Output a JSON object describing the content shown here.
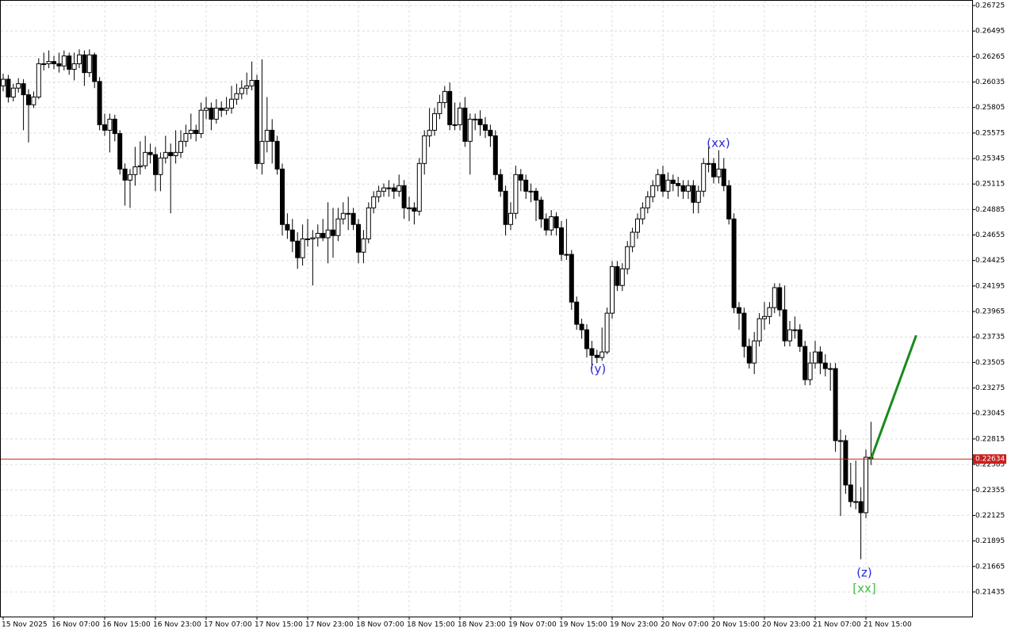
{
  "chart_data": {
    "type": "candlestick",
    "color_up": "#ffffff",
    "color_down": "#000000",
    "grid": true,
    "ylim": [
      0.21213,
      0.26775
    ],
    "yticks": [
      0.26725,
      0.26495,
      0.26265,
      0.26035,
      0.25805,
      0.25575,
      0.25345,
      0.25115,
      0.24885,
      0.24655,
      0.24425,
      0.24195,
      0.23965,
      0.23735,
      0.23505,
      0.23275,
      0.23045,
      0.22815,
      0.22585,
      0.22355,
      0.22125,
      0.21895,
      0.21665,
      0.21435
    ],
    "categories": [
      "15 Nov 2025",
      null,
      null,
      null,
      null,
      null,
      null,
      null,
      null,
      null,
      "16 Nov 07:00",
      null,
      null,
      null,
      null,
      null,
      null,
      null,
      null,
      null,
      "16 Nov 15:00",
      null,
      null,
      null,
      null,
      null,
      null,
      null,
      null,
      null,
      "16 Nov 23:00",
      null,
      null,
      null,
      null,
      null,
      null,
      null,
      null,
      null,
      "17 Nov 07:00",
      null,
      null,
      null,
      null,
      null,
      null,
      null,
      null,
      null,
      "17 Nov 15:00",
      null,
      null,
      null,
      null,
      null,
      null,
      null,
      null,
      null,
      "17 Nov 23:00",
      null,
      null,
      null,
      null,
      null,
      null,
      null,
      null,
      null,
      "18 Nov 07:00",
      null,
      null,
      null,
      null,
      null,
      null,
      null,
      null,
      null,
      "18 Nov 15:00",
      null,
      null,
      null,
      null,
      null,
      null,
      null,
      null,
      null,
      "18 Nov 23:00",
      null,
      null,
      null,
      null,
      null,
      null,
      null,
      null,
      null,
      "19 Nov 07:00",
      null,
      null,
      null,
      null,
      null,
      null,
      null,
      null,
      null,
      "19 Nov 15:00",
      null,
      null,
      null,
      null,
      null,
      null,
      null,
      null,
      null,
      "19 Nov 23:00",
      null,
      null,
      null,
      null,
      null,
      null,
      null,
      null,
      null,
      "20 Nov 07:00",
      null,
      null,
      null,
      null,
      null,
      null,
      null,
      null,
      null,
      "20 Nov 15:00",
      null,
      null,
      null,
      null,
      null,
      null,
      null,
      null,
      null,
      "20 Nov 23:00",
      null,
      null,
      null,
      null,
      null,
      null,
      null,
      null,
      null,
      "21 Nov 07:00",
      null,
      null,
      null,
      null,
      null,
      null,
      null,
      null,
      null,
      "21 Nov 15:00",
      null
    ],
    "ohlc": [
      [
        0.26,
        0.2611,
        0.2595,
        0.2606
      ],
      [
        0.2606,
        0.261,
        0.2585,
        0.259
      ],
      [
        0.259,
        0.2602,
        0.2586,
        0.2598
      ],
      [
        0.2598,
        0.2607,
        0.2594,
        0.2602
      ],
      [
        0.2602,
        0.2606,
        0.256,
        0.2592
      ],
      [
        0.2592,
        0.2597,
        0.2549,
        0.2583
      ],
      [
        0.2583,
        0.2595,
        0.258,
        0.259
      ],
      [
        0.259,
        0.2625,
        0.2588,
        0.262
      ],
      [
        0.262,
        0.263,
        0.2614,
        0.262
      ],
      [
        0.262,
        0.2632,
        0.2616,
        0.2622
      ],
      [
        0.2622,
        0.2627,
        0.2615,
        0.262
      ],
      [
        0.262,
        0.263,
        0.2612,
        0.2618
      ],
      [
        0.2618,
        0.2632,
        0.2614,
        0.2627
      ],
      [
        0.2627,
        0.263,
        0.261,
        0.2615
      ],
      [
        0.2615,
        0.263,
        0.2605,
        0.262
      ],
      [
        0.262,
        0.2633,
        0.2616,
        0.2628
      ],
      [
        0.2628,
        0.2632,
        0.26,
        0.2612
      ],
      [
        0.2612,
        0.2633,
        0.2608,
        0.2628
      ],
      [
        0.2628,
        0.263,
        0.2598,
        0.2604
      ],
      [
        0.2604,
        0.2608,
        0.256,
        0.2565
      ],
      [
        0.2565,
        0.2575,
        0.2555,
        0.256
      ],
      [
        0.256,
        0.2575,
        0.254,
        0.257
      ],
      [
        0.257,
        0.2574,
        0.255,
        0.2557
      ],
      [
        0.2557,
        0.256,
        0.252,
        0.2525
      ],
      [
        0.2525,
        0.253,
        0.2492,
        0.2515
      ],
      [
        0.2515,
        0.2525,
        0.249,
        0.252
      ],
      [
        0.252,
        0.2545,
        0.251,
        0.2527
      ],
      [
        0.2527,
        0.255,
        0.252,
        0.2528
      ],
      [
        0.2528,
        0.2555,
        0.2525,
        0.254
      ],
      [
        0.254,
        0.2548,
        0.253,
        0.2538
      ],
      [
        0.2538,
        0.2545,
        0.2505,
        0.252
      ],
      [
        0.252,
        0.254,
        0.2505,
        0.2535
      ],
      [
        0.2535,
        0.2555,
        0.253,
        0.254
      ],
      [
        0.254,
        0.2548,
        0.2485,
        0.2537
      ],
      [
        0.2537,
        0.256,
        0.253,
        0.254
      ],
      [
        0.254,
        0.256,
        0.2535,
        0.255
      ],
      [
        0.255,
        0.2565,
        0.2545,
        0.2557
      ],
      [
        0.2557,
        0.2575,
        0.2552,
        0.256
      ],
      [
        0.256,
        0.2565,
        0.255,
        0.2557
      ],
      [
        0.2557,
        0.2585,
        0.2553,
        0.2578
      ],
      [
        0.2578,
        0.259,
        0.257,
        0.258
      ],
      [
        0.258,
        0.2585,
        0.256,
        0.257
      ],
      [
        0.257,
        0.2588,
        0.2566,
        0.258
      ],
      [
        0.258,
        0.2586,
        0.2572,
        0.2578
      ],
      [
        0.2578,
        0.259,
        0.2574,
        0.258
      ],
      [
        0.258,
        0.26,
        0.2575,
        0.2588
      ],
      [
        0.2588,
        0.2602,
        0.2583,
        0.2593
      ],
      [
        0.2593,
        0.2605,
        0.2588,
        0.2598
      ],
      [
        0.2598,
        0.2612,
        0.2592,
        0.26
      ],
      [
        0.26,
        0.2622,
        0.2596,
        0.2605
      ],
      [
        0.2605,
        0.261,
        0.2525,
        0.253
      ],
      [
        0.253,
        0.2624,
        0.252,
        0.255
      ],
      [
        0.255,
        0.259,
        0.254,
        0.256
      ],
      [
        0.256,
        0.257,
        0.253,
        0.255
      ],
      [
        0.255,
        0.2555,
        0.252,
        0.2525
      ],
      [
        0.2525,
        0.253,
        0.2465,
        0.2475
      ],
      [
        0.2475,
        0.2485,
        0.2462,
        0.247
      ],
      [
        0.247,
        0.248,
        0.245,
        0.246
      ],
      [
        0.246,
        0.2468,
        0.2435,
        0.2445
      ],
      [
        0.2445,
        0.2475,
        0.2438,
        0.2462
      ],
      [
        0.2462,
        0.248,
        0.2455,
        0.2462
      ],
      [
        0.2462,
        0.247,
        0.242,
        0.2463
      ],
      [
        0.2463,
        0.2475,
        0.2455,
        0.2467
      ],
      [
        0.2467,
        0.248,
        0.246,
        0.2463
      ],
      [
        0.2463,
        0.2495,
        0.244,
        0.247
      ],
      [
        0.247,
        0.249,
        0.2445,
        0.2465
      ],
      [
        0.2465,
        0.249,
        0.246,
        0.248
      ],
      [
        0.248,
        0.2495,
        0.2475,
        0.2485
      ],
      [
        0.2485,
        0.25,
        0.247,
        0.2485
      ],
      [
        0.2485,
        0.249,
        0.247,
        0.2475
      ],
      [
        0.2475,
        0.248,
        0.244,
        0.245
      ],
      [
        0.245,
        0.247,
        0.244,
        0.2462
      ],
      [
        0.2462,
        0.2495,
        0.2458,
        0.249
      ],
      [
        0.249,
        0.2505,
        0.2485,
        0.25
      ],
      [
        0.25,
        0.251,
        0.2495,
        0.2505
      ],
      [
        0.2505,
        0.2512,
        0.25,
        0.2508
      ],
      [
        0.2508,
        0.2515,
        0.25,
        0.2508
      ],
      [
        0.2508,
        0.2512,
        0.2498,
        0.2505
      ],
      [
        0.2505,
        0.252,
        0.25,
        0.251
      ],
      [
        0.251,
        0.2515,
        0.248,
        0.249
      ],
      [
        0.249,
        0.25,
        0.2478,
        0.249
      ],
      [
        0.249,
        0.2495,
        0.2475,
        0.2487
      ],
      [
        0.2487,
        0.2535,
        0.2483,
        0.253
      ],
      [
        0.253,
        0.256,
        0.252,
        0.2555
      ],
      [
        0.2555,
        0.258,
        0.2545,
        0.256
      ],
      [
        0.256,
        0.258,
        0.2555,
        0.2575
      ],
      [
        0.2575,
        0.2592,
        0.257,
        0.2585
      ],
      [
        0.2585,
        0.26,
        0.258,
        0.2595
      ],
      [
        0.2595,
        0.2603,
        0.256,
        0.2565
      ],
      [
        0.2565,
        0.2585,
        0.256,
        0.2565
      ],
      [
        0.2565,
        0.2585,
        0.256,
        0.258
      ],
      [
        0.258,
        0.259,
        0.2545,
        0.255
      ],
      [
        0.255,
        0.2575,
        0.252,
        0.257
      ],
      [
        0.257,
        0.2575,
        0.256,
        0.257
      ],
      [
        0.257,
        0.2578,
        0.2555,
        0.2565
      ],
      [
        0.2565,
        0.2572,
        0.2553,
        0.256
      ],
      [
        0.256,
        0.2565,
        0.2545,
        0.2555
      ],
      [
        0.2555,
        0.256,
        0.2515,
        0.252
      ],
      [
        0.252,
        0.2525,
        0.25,
        0.2505
      ],
      [
        0.2505,
        0.251,
        0.2465,
        0.2475
      ],
      [
        0.2475,
        0.2495,
        0.247,
        0.2485
      ],
      [
        0.2485,
        0.2528,
        0.248,
        0.252
      ],
      [
        0.252,
        0.2525,
        0.2505,
        0.2515
      ],
      [
        0.2515,
        0.252,
        0.2498,
        0.2505
      ],
      [
        0.2505,
        0.2512,
        0.2495,
        0.2505
      ],
      [
        0.2505,
        0.2508,
        0.2478,
        0.2497
      ],
      [
        0.2497,
        0.25,
        0.2472,
        0.248
      ],
      [
        0.248,
        0.2485,
        0.2465,
        0.247
      ],
      [
        0.247,
        0.2488,
        0.2465,
        0.2482
      ],
      [
        0.2482,
        0.2486,
        0.2465,
        0.2472
      ],
      [
        0.2472,
        0.2478,
        0.2442,
        0.2448
      ],
      [
        0.2448,
        0.248,
        0.2443,
        0.2448
      ],
      [
        0.2448,
        0.2452,
        0.2398,
        0.2405
      ],
      [
        0.2405,
        0.241,
        0.238,
        0.2385
      ],
      [
        0.2385,
        0.239,
        0.2372,
        0.238
      ],
      [
        0.238,
        0.2385,
        0.2355,
        0.2363
      ],
      [
        0.2363,
        0.237,
        0.2345,
        0.2357
      ],
      [
        0.2357,
        0.2362,
        0.235,
        0.2355
      ],
      [
        0.2355,
        0.2382,
        0.2352,
        0.236
      ],
      [
        0.236,
        0.24,
        0.2358,
        0.2395
      ],
      [
        0.2395,
        0.2442,
        0.239,
        0.2437
      ],
      [
        0.2437,
        0.2442,
        0.2415,
        0.242
      ],
      [
        0.242,
        0.244,
        0.2415,
        0.2435
      ],
      [
        0.2435,
        0.246,
        0.243,
        0.2455
      ],
      [
        0.2455,
        0.2472,
        0.245,
        0.2468
      ],
      [
        0.2468,
        0.2485,
        0.2462,
        0.248
      ],
      [
        0.248,
        0.2495,
        0.2475,
        0.249
      ],
      [
        0.249,
        0.2505,
        0.2485,
        0.25
      ],
      [
        0.25,
        0.2515,
        0.2495,
        0.251
      ],
      [
        0.251,
        0.2525,
        0.2505,
        0.252
      ],
      [
        0.252,
        0.2528,
        0.25,
        0.2505
      ],
      [
        0.2505,
        0.2522,
        0.2498,
        0.2515
      ],
      [
        0.2515,
        0.252,
        0.2505,
        0.2512
      ],
      [
        0.2512,
        0.2518,
        0.25,
        0.251
      ],
      [
        0.251,
        0.2515,
        0.2498,
        0.2505
      ],
      [
        0.2505,
        0.2515,
        0.2498,
        0.251
      ],
      [
        0.251,
        0.2515,
        0.2485,
        0.2495
      ],
      [
        0.2495,
        0.251,
        0.2485,
        0.2505
      ],
      [
        0.2505,
        0.2535,
        0.25,
        0.253
      ],
      [
        0.253,
        0.2545,
        0.2522,
        0.253
      ],
      [
        0.253,
        0.2535,
        0.2512,
        0.2518
      ],
      [
        0.2518,
        0.2542,
        0.2512,
        0.2525
      ],
      [
        0.2525,
        0.2535,
        0.2505,
        0.251
      ],
      [
        0.251,
        0.2515,
        0.2475,
        0.248
      ],
      [
        0.248,
        0.2485,
        0.2395,
        0.24
      ],
      [
        0.24,
        0.2405,
        0.238,
        0.2395
      ],
      [
        0.2395,
        0.24,
        0.2355,
        0.2365
      ],
      [
        0.2365,
        0.2372,
        0.2345,
        0.235
      ],
      [
        0.235,
        0.2378,
        0.234,
        0.237
      ],
      [
        0.237,
        0.2395,
        0.2365,
        0.239
      ],
      [
        0.239,
        0.2405,
        0.238,
        0.2392
      ],
      [
        0.2392,
        0.2405,
        0.2385,
        0.24
      ],
      [
        0.24,
        0.2422,
        0.2395,
        0.2418
      ],
      [
        0.2418,
        0.2422,
        0.2392,
        0.2398
      ],
      [
        0.2398,
        0.242,
        0.2365,
        0.237
      ],
      [
        0.237,
        0.2388,
        0.2365,
        0.238
      ],
      [
        0.238,
        0.2392,
        0.2372,
        0.238
      ],
      [
        0.238,
        0.2385,
        0.236,
        0.2365
      ],
      [
        0.2365,
        0.237,
        0.233,
        0.2335
      ],
      [
        0.2335,
        0.236,
        0.233,
        0.235
      ],
      [
        0.235,
        0.237,
        0.2345,
        0.236
      ],
      [
        0.236,
        0.2365,
        0.234,
        0.235
      ],
      [
        0.235,
        0.2358,
        0.2338,
        0.2345
      ],
      [
        0.2345,
        0.235,
        0.2325,
        0.2345
      ],
      [
        0.2345,
        0.235,
        0.227,
        0.228
      ],
      [
        0.228,
        0.229,
        0.2212,
        0.228
      ],
      [
        0.228,
        0.2285,
        0.2232,
        0.224
      ],
      [
        0.224,
        0.226,
        0.222,
        0.2225
      ],
      [
        0.2225,
        0.2262,
        0.2218,
        0.2225
      ],
      [
        0.2225,
        0.2238,
        0.2173,
        0.2215
      ],
      [
        0.2215,
        0.2272,
        0.221,
        0.2265
      ],
      [
        0.2265,
        0.2297,
        0.2258,
        0.22634
      ]
    ],
    "current_price": 0.22634,
    "current_price_color": "#c8201e",
    "projection": {
      "color": "#1a8a1a",
      "values": [
        0.22634,
        0.2375
      ]
    },
    "annotations": [
      {
        "text": "(xx)",
        "color": "#2a2ad8"
      },
      {
        "text": "(y)",
        "color": "#2a2ad8"
      },
      {
        "text": "(z)",
        "color": "#2a2ad8"
      },
      {
        "text": "[xx]",
        "color": "#44bb44"
      }
    ]
  }
}
